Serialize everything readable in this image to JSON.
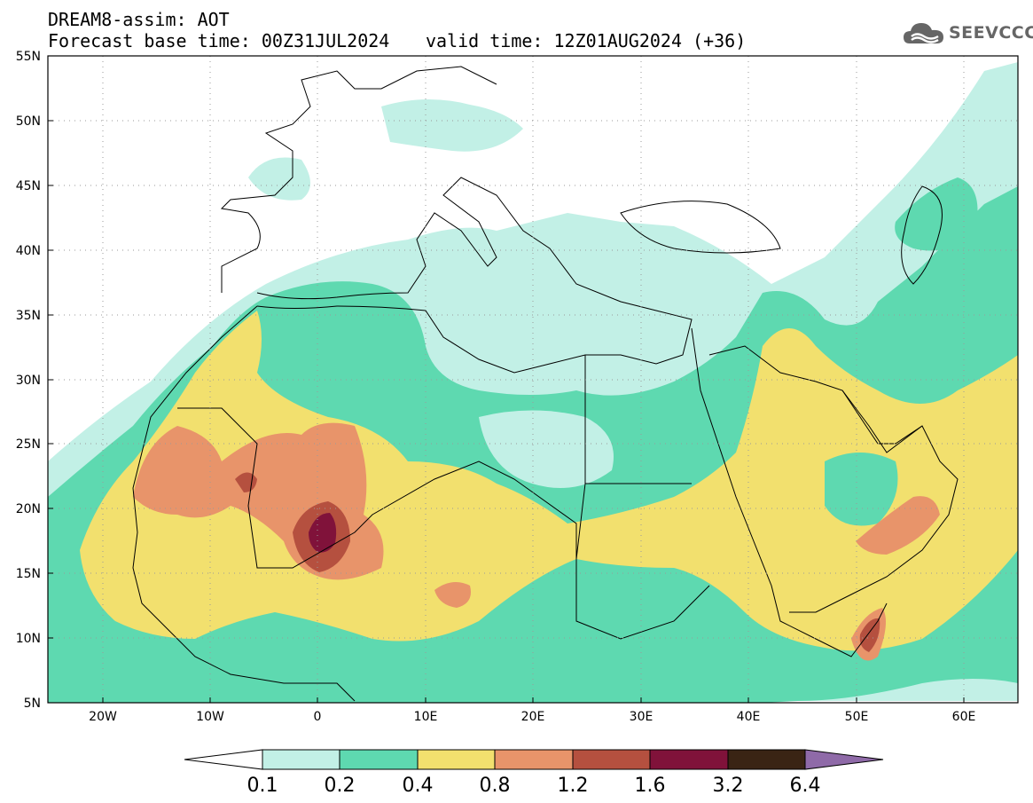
{
  "header": {
    "title": "DREAM8-assim: AOT",
    "base_time": "Forecast base time: 00Z31JUL2024",
    "valid_time": "valid time: 12Z01AUG2024 (+36)"
  },
  "logo": {
    "text": "SEEVCCC",
    "icon": "cloud-icon"
  },
  "map": {
    "lat_labels": [
      "55N",
      "50N",
      "45N",
      "40N",
      "35N",
      "30N",
      "25N",
      "20N",
      "15N",
      "10N",
      "5N"
    ],
    "lon_labels": [
      "20W",
      "10W",
      "0",
      "10E",
      "20E",
      "30E",
      "40E",
      "50E",
      "60E"
    ],
    "grid": "dotted",
    "projection": "lat-lon",
    "lon_range": [
      -25,
      65
    ],
    "lat_range": [
      5,
      55
    ]
  },
  "colorbar": {
    "labels": [
      "0.1",
      "0.2",
      "0.4",
      "0.8",
      "1.2",
      "1.6",
      "3.2",
      "6.4"
    ],
    "colors": [
      "#c2f0e6",
      "#5ed9b0",
      "#f2e06e",
      "#e8946a",
      "#b5503f",
      "#80123a",
      "#3a2414",
      "#8f6aa8"
    ],
    "extend": "both"
  }
}
